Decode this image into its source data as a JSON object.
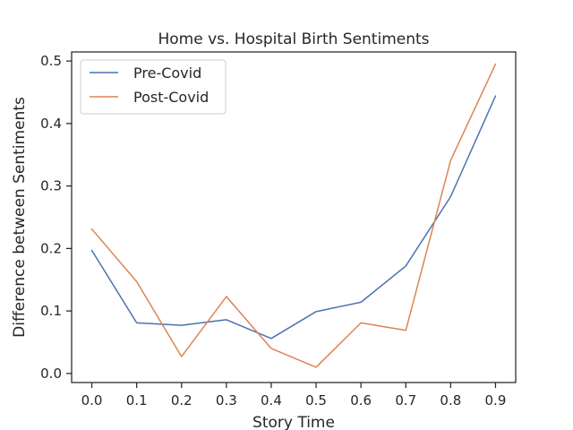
{
  "chart_data": {
    "type": "line",
    "title": "Home vs. Hospital Birth Sentiments",
    "xlabel": "Story Time",
    "ylabel": "Difference between Sentiments",
    "x": [
      0.0,
      0.1,
      0.2,
      0.3,
      0.4,
      0.5,
      0.6,
      0.7,
      0.8,
      0.9
    ],
    "xlim": [
      -0.045,
      0.945
    ],
    "ylim": [
      -0.0145,
      0.5145
    ],
    "xticks": [
      "0.0",
      "0.1",
      "0.2",
      "0.3",
      "0.4",
      "0.5",
      "0.6",
      "0.7",
      "0.8",
      "0.9"
    ],
    "yticks": [
      "0.0",
      "0.1",
      "0.2",
      "0.3",
      "0.4",
      "0.5"
    ],
    "grid": false,
    "legend_position": "top-left",
    "series": [
      {
        "name": "Pre-Covid",
        "color": "#4c72b0",
        "values": [
          0.197,
          0.081,
          0.077,
          0.086,
          0.056,
          0.099,
          0.114,
          0.172,
          0.283,
          0.444
        ]
      },
      {
        "name": "Post-Covid",
        "color": "#dd8452",
        "values": [
          0.231,
          0.147,
          0.027,
          0.123,
          0.04,
          0.01,
          0.081,
          0.069,
          0.341,
          0.495
        ]
      }
    ]
  }
}
